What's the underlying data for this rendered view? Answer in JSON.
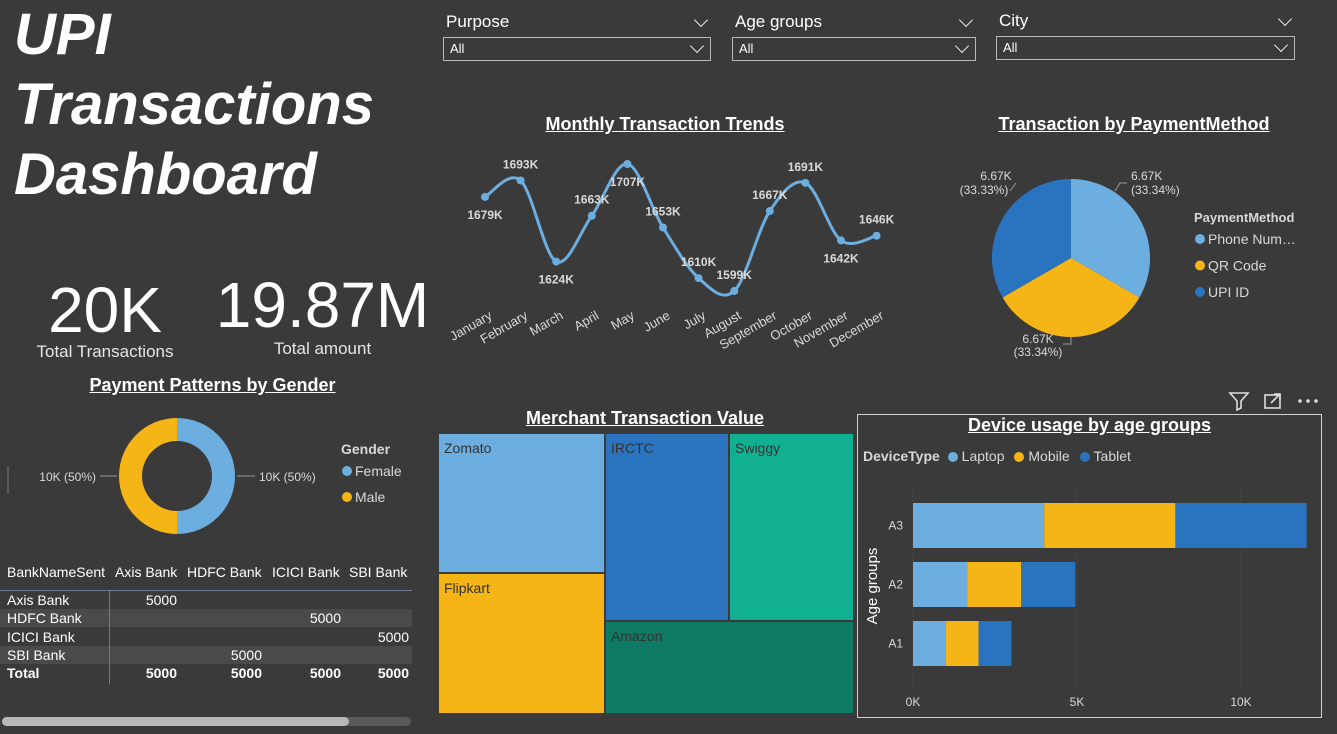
{
  "dashboard": {
    "title_lines": [
      "UPI",
      "Transactions",
      "Dashboard"
    ]
  },
  "kpis": [
    {
      "value": "20K",
      "label": "Total Transactions"
    },
    {
      "value": "19.87M",
      "label": "Total amount"
    }
  ],
  "slicers": [
    {
      "title": "Purpose",
      "value": "All"
    },
    {
      "title": "Age groups",
      "value": "All"
    },
    {
      "title": "City",
      "value": "All"
    }
  ],
  "colors": {
    "light_blue": "#6daee0",
    "yellow": "#f5b517",
    "dark_blue": "#2a73be",
    "teal": "#11b092",
    "dark_teal": "#0f7a63",
    "background": "#3a3a3a"
  },
  "monthly": {
    "title": "Monthly Transaction Trends",
    "chart_data": {
      "type": "line",
      "categories": [
        "January",
        "February",
        "March",
        "April",
        "May",
        "June",
        "July",
        "August",
        "September",
        "October",
        "November",
        "December"
      ],
      "values": [
        1679,
        1693,
        1624,
        1663,
        1707,
        1653,
        1610,
        1599,
        1667,
        1691,
        1642,
        1646
      ],
      "data_labels": [
        "1679K",
        "1693K",
        "1624K",
        "1663K",
        "1707K",
        "1653K",
        "1610K",
        "1599K",
        "1667K",
        "1691K",
        "1642K",
        "1646K"
      ],
      "color": "#6daee0"
    }
  },
  "payment": {
    "title": "Transaction by PaymentMethod",
    "legend_title": "PaymentMethod",
    "chart_data": {
      "type": "pie",
      "categories": [
        "Phone Num…",
        "QR Code",
        "UPI ID"
      ],
      "values": [
        6.67,
        6.67,
        6.67
      ],
      "labels_value": [
        "6.67K",
        "6.67K",
        "6.67K"
      ],
      "labels_pct": [
        "(33.34%)",
        "(33.34%)",
        "(33.33%)"
      ],
      "colors": [
        "#6daee0",
        "#f5b517",
        "#2a73be"
      ]
    }
  },
  "gender": {
    "title": "Payment Patterns by Gender",
    "legend_title": "Gender",
    "chart_data": {
      "type": "pie",
      "categories": [
        "Female",
        "Male"
      ],
      "values": [
        10,
        10
      ],
      "labels": [
        "10K (50%)",
        "10K (50%)"
      ],
      "colors": [
        "#6daee0",
        "#f5b517"
      ]
    }
  },
  "bank_matrix": {
    "headers": [
      "BankNameSent",
      "Axis Bank",
      "HDFC Bank",
      "ICICI Bank",
      "SBI Bank"
    ],
    "rows": [
      [
        "Axis Bank",
        "5000",
        "",
        "",
        ""
      ],
      [
        "HDFC Bank",
        "",
        "",
        "5000",
        ""
      ],
      [
        "ICICI Bank",
        "",
        "",
        "",
        "5000"
      ],
      [
        "SBI Bank",
        "",
        "5000",
        "",
        ""
      ]
    ],
    "total": [
      "Total",
      "5000",
      "5000",
      "5000",
      "5000"
    ]
  },
  "merchant": {
    "title": "Merchant Transaction Value",
    "chart_data": {
      "type": "treemap",
      "categories": [
        "Zomato",
        "Flipkart",
        "IRCTC",
        "Swiggy",
        "Amazon"
      ]
    }
  },
  "device": {
    "title": "Device usage by age groups",
    "legend_title": "DeviceType",
    "y_axis_title": "Age groups",
    "chart_data": {
      "type": "bar",
      "stacked": true,
      "orientation": "horizontal",
      "categories": [
        "A3",
        "A2",
        "A1"
      ],
      "series": [
        {
          "name": "Laptop",
          "values": [
            4000,
            1650,
            1000
          ],
          "color": "#6daee0"
        },
        {
          "name": "Mobile",
          "values": [
            4000,
            1650,
            1000
          ],
          "color": "#f5b517"
        },
        {
          "name": "Tablet",
          "values": [
            4000,
            1650,
            1000
          ],
          "color": "#2a73be"
        }
      ],
      "x_ticks": [
        "0K",
        "5K",
        "10K"
      ],
      "xlim": [
        0,
        12000
      ]
    }
  },
  "visual_header_icons": [
    "filter-icon",
    "focus-mode-icon",
    "more-options-icon"
  ]
}
